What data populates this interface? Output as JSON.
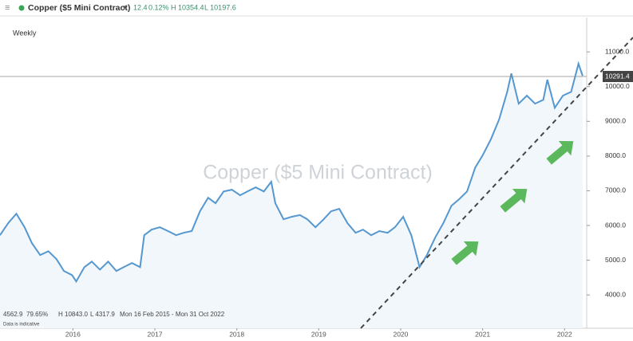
{
  "header": {
    "title": "Copper ($5 Mini Contract)",
    "change": "12.4",
    "change_pct": "0.12%",
    "high": "H 10354.4",
    "low": "L 10197.6"
  },
  "chart_data": {
    "type": "line",
    "timeframe": "Weekly",
    "watermark": "Copper ($5 Mini Contract)",
    "x": [
      2015.11,
      2015.21,
      2015.31,
      2015.41,
      2015.5,
      2015.6,
      2015.7,
      2015.8,
      2015.89,
      2015.99,
      2016.04,
      2016.14,
      2016.23,
      2016.33,
      2016.43,
      2016.53,
      2016.62,
      2016.72,
      2016.82,
      2016.87,
      2016.96,
      2017.06,
      2017.16,
      2017.26,
      2017.35,
      2017.45,
      2017.55,
      2017.65,
      2017.74,
      2017.84,
      2017.94,
      2018.04,
      2018.13,
      2018.23,
      2018.33,
      2018.42,
      2018.47,
      2018.57,
      2018.67,
      2018.77,
      2018.86,
      2018.96,
      2019.06,
      2019.15,
      2019.25,
      2019.35,
      2019.45,
      2019.54,
      2019.64,
      2019.74,
      2019.84,
      2019.93,
      2020.03,
      2020.13,
      2020.23,
      2020.32,
      2020.42,
      2020.52,
      2020.62,
      2020.71,
      2020.81,
      2020.91,
      2021.0,
      2021.1,
      2021.2,
      2021.3,
      2021.35,
      2021.44,
      2021.54,
      2021.64,
      2021.74,
      2021.79,
      2021.88,
      2021.98,
      2022.08,
      2022.17,
      2022.22
    ],
    "series": [
      {
        "name": "Copper ($5 Mini Contract)",
        "color": "#5597cf",
        "values": [
          5720,
          6070,
          6340,
          5950,
          5490,
          5150,
          5260,
          5030,
          4690,
          4570,
          4390,
          4800,
          4960,
          4730,
          4960,
          4690,
          4800,
          4920,
          4800,
          5720,
          5880,
          5950,
          5840,
          5720,
          5790,
          5840,
          6410,
          6800,
          6640,
          6980,
          7030,
          6870,
          6980,
          7100,
          6980,
          7260,
          6640,
          6180,
          6250,
          6300,
          6180,
          5950,
          6180,
          6410,
          6480,
          6070,
          5790,
          5880,
          5720,
          5840,
          5790,
          5950,
          6250,
          5720,
          4800,
          5150,
          5650,
          6070,
          6570,
          6750,
          6980,
          7670,
          8020,
          8480,
          9050,
          9850,
          10380,
          9510,
          9740,
          9510,
          9620,
          10200,
          9390,
          9740,
          9850,
          10660,
          10310
        ]
      }
    ],
    "last_price": 10291.4,
    "xlim": [
      2015.11,
      2022.27
    ],
    "xticks": [
      2016,
      2017,
      2018,
      2019,
      2020,
      2021,
      2022
    ],
    "ylim": [
      3040,
      11990
    ],
    "yticks": [
      {
        "value": 4000,
        "label": "4000.0"
      },
      {
        "value": 5000,
        "label": "5000.0"
      },
      {
        "value": 6000,
        "label": "6000.0"
      },
      {
        "value": 7000,
        "label": "7000.0"
      },
      {
        "value": 8000,
        "label": "8000.0"
      },
      {
        "value": 9000,
        "label": "9000.0"
      },
      {
        "value": 10000,
        "label": "10000.0"
      },
      {
        "value": 11000,
        "label": "11000.0"
      }
    ],
    "footer": {
      "last": "4562.9",
      "pct": "79.65%",
      "high": "H 10843.0",
      "low": "L 4317.9",
      "range": "Mon 16 Feb 2015 - Mon 31 Oct 2022",
      "note": "Data is indicative"
    }
  }
}
